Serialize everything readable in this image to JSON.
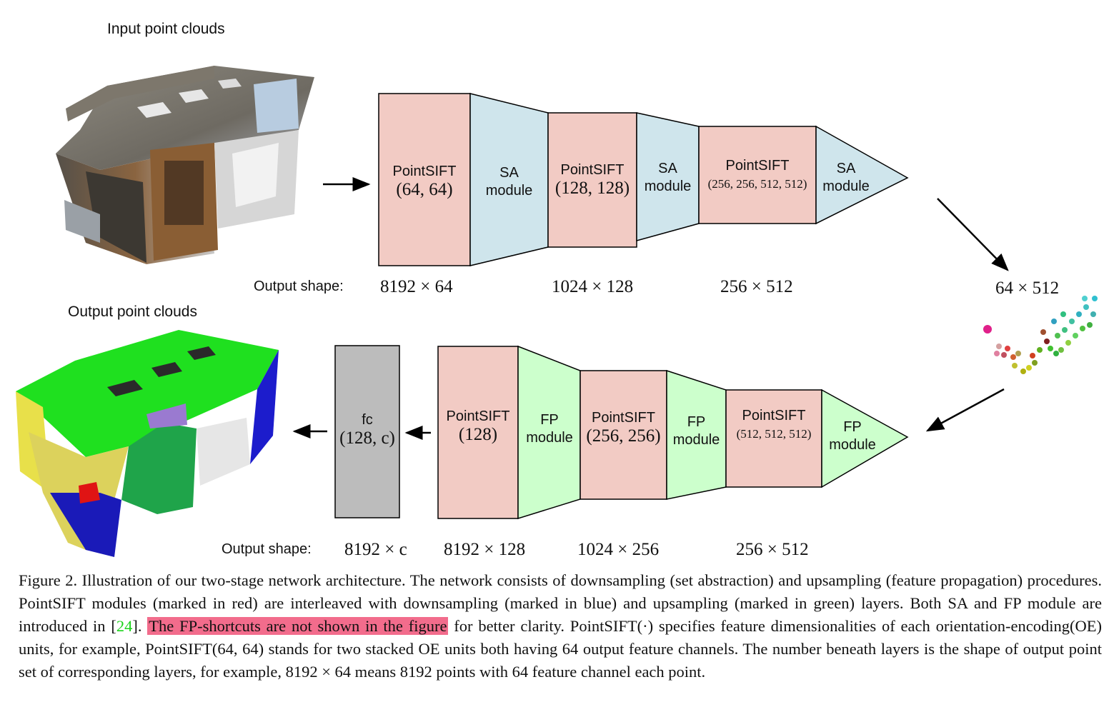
{
  "figure": {
    "input_title": "Input point clouds",
    "output_title": "Output point clouds",
    "encoder": {
      "output_shape_label": "Output shape:",
      "blocks": [
        {
          "name": "PointSIFT",
          "params": "(64, 64)",
          "module": [
            "SA",
            "module"
          ],
          "shape": "8192 × 64"
        },
        {
          "name": "PointSIFT",
          "params": "(128, 128)",
          "module": [
            "SA",
            "module"
          ],
          "shape": "1024 × 128"
        },
        {
          "name": "PointSIFT",
          "params": "(256, 256, 512, 512)",
          "module": [
            "SA",
            "module"
          ],
          "shape": "256 × 512"
        }
      ],
      "bottleneck_shape": "64 × 512"
    },
    "decoder": {
      "output_shape_label": "Output shape:",
      "fc": {
        "name": "fc",
        "params": "(128, c)",
        "shape": "8192 × c"
      },
      "blocks": [
        {
          "name": "PointSIFT",
          "params": "(128)",
          "module": [
            "FP",
            "module"
          ],
          "shape": "8192 × 128"
        },
        {
          "name": "PointSIFT",
          "params": "(256, 256)",
          "module": [
            "FP",
            "module"
          ],
          "shape": "1024 × 256"
        },
        {
          "name": "PointSIFT",
          "params": "(512, 512, 512)",
          "module": [
            "FP",
            "module"
          ],
          "shape": "256 × 512"
        }
      ]
    },
    "colors": {
      "pointsift": "#f2cbc4",
      "sa": "#cfe5ec",
      "fp": "#ccffcc",
      "fc": "#bcbcbc",
      "highlight": "#f26c8c",
      "citation": "#1bd31b"
    }
  },
  "caption": {
    "part1": "Figure 2. Illustration of our two-stage network architecture.  The network consists of downsampling (set abstraction) and upsampling (feature propagation) procedures. PointSIFT modules (marked in red) are interleaved with downsampling (marked in blue) and upsampling (marked in green) layers. Both SA and FP module are introduced in [",
    "cite": "24",
    "part2": "]. ",
    "highlight": "The FP-shortcuts are not shown in the figure",
    "part3": " for better clarity. PointSIFT(·) specifies feature dimensionalities of each orientation-encoding(OE) units, for example, PointSIFT(64, 64) stands for two stacked OE units both having 64 output feature channels. The number beneath layers is the shape of output point set of corresponding layers, for example, 8192 × 64 means 8192 points with 64 feature channel each point."
  }
}
